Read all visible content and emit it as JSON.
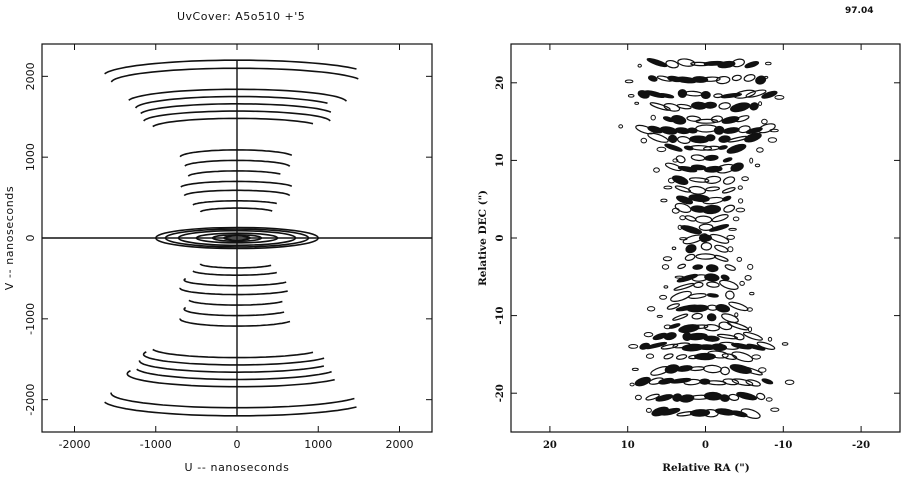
{
  "figure_title": "UvCover: A5o510 +'5",
  "chart_data": [
    {
      "type": "scatter",
      "name": "uv-coverage",
      "xlabel": "U -- nanoseconds",
      "ylabel": "V -- nanoseconds",
      "xlim": [
        -2400,
        2400
      ],
      "ylim": [
        -2400,
        2400
      ],
      "xticks": [
        -2000,
        -1000,
        0,
        1000,
        2000
      ],
      "xtick_labels": [
        "-2000",
        "-1000",
        "0",
        "1000",
        "2000"
      ],
      "yticks": [
        -2000,
        -1000,
        0,
        1000,
        2000
      ],
      "ytick_labels": [
        "-2000",
        "-1000",
        "0",
        "1000",
        "2000"
      ],
      "tracks": [
        {
          "a": 1650,
          "b": 200,
          "v0": 2000
        },
        {
          "a": 1550,
          "b": 180,
          "v0": 1920
        },
        {
          "a": 1350,
          "b": 160,
          "v0": 1680
        },
        {
          "a": 1250,
          "b": 150,
          "v0": 1600
        },
        {
          "a": 1200,
          "b": 140,
          "v0": 1520
        },
        {
          "a": 1150,
          "b": 130,
          "v0": 1440
        },
        {
          "a": 1050,
          "b": 120,
          "v0": 1360
        },
        {
          "a": 700,
          "b": 90,
          "v0": 1000
        },
        {
          "a": 650,
          "b": 80,
          "v0": 880
        },
        {
          "a": 600,
          "b": 70,
          "v0": 760
        },
        {
          "a": 700,
          "b": 80,
          "v0": 620
        },
        {
          "a": 650,
          "b": 70,
          "v0": 520
        },
        {
          "a": 550,
          "b": 60,
          "v0": 400
        },
        {
          "a": 450,
          "b": 50,
          "v0": 320
        },
        {
          "a": 1000,
          "b": 130,
          "v0": 0
        },
        {
          "a": 880,
          "b": 110,
          "v0": 0
        },
        {
          "a": 720,
          "b": 90,
          "v0": 0
        },
        {
          "a": 500,
          "b": 60,
          "v0": 0
        },
        {
          "a": 300,
          "b": 40,
          "v0": 0
        },
        {
          "a": 160,
          "b": 25,
          "v0": 0
        }
      ]
    },
    {
      "type": "heatmap",
      "name": "dirty-beam",
      "annotation": "97.04",
      "xlabel": "Relative RA (\")",
      "ylabel": "Relative DEC (\")",
      "xlim": [
        25,
        -25
      ],
      "ylim": [
        -25,
        25
      ],
      "xticks": [
        20,
        10,
        0,
        -10,
        -20
      ],
      "xtick_labels": [
        "20",
        "10",
        "0",
        "-10",
        "-20"
      ],
      "yticks": [
        -20,
        -10,
        0,
        10,
        20
      ],
      "ytick_labels": [
        "-20",
        "-10",
        "0",
        "10",
        "20"
      ],
      "fringe_rows": [
        {
          "y": 22.5,
          "half": 6
        },
        {
          "y": 20.5,
          "half": 7
        },
        {
          "y": 18.5,
          "half": 8
        },
        {
          "y": 17,
          "half": 6
        },
        {
          "y": 15.2,
          "half": 5
        },
        {
          "y": 14,
          "half": 8
        },
        {
          "y": 12.8,
          "half": 6
        },
        {
          "y": 11.5,
          "half": 4
        },
        {
          "y": 10.2,
          "half": 3
        },
        {
          "y": 9,
          "half": 4
        },
        {
          "y": 7.5,
          "half": 3
        },
        {
          "y": 6.2,
          "half": 3
        },
        {
          "y": 5,
          "half": 2.5
        },
        {
          "y": 3.8,
          "half": 3
        },
        {
          "y": 2.5,
          "half": 2
        },
        {
          "y": 1.2,
          "half": 2
        },
        {
          "y": 0,
          "half": 1.8
        },
        {
          "y": -1.2,
          "half": 2
        },
        {
          "y": -2.5,
          "half": 2
        },
        {
          "y": -3.8,
          "half": 3
        },
        {
          "y": -5,
          "half": 2.5
        },
        {
          "y": -6.2,
          "half": 3
        },
        {
          "y": -7.5,
          "half": 3
        },
        {
          "y": -9,
          "half": 4
        },
        {
          "y": -10.2,
          "half": 3
        },
        {
          "y": -11.5,
          "half": 4
        },
        {
          "y": -12.8,
          "half": 6
        },
        {
          "y": -14,
          "half": 8
        },
        {
          "y": -15.2,
          "half": 5
        },
        {
          "y": -17,
          "half": 6
        },
        {
          "y": -18.5,
          "half": 8
        },
        {
          "y": -20.5,
          "half": 7
        },
        {
          "y": -22.5,
          "half": 6
        }
      ]
    }
  ]
}
